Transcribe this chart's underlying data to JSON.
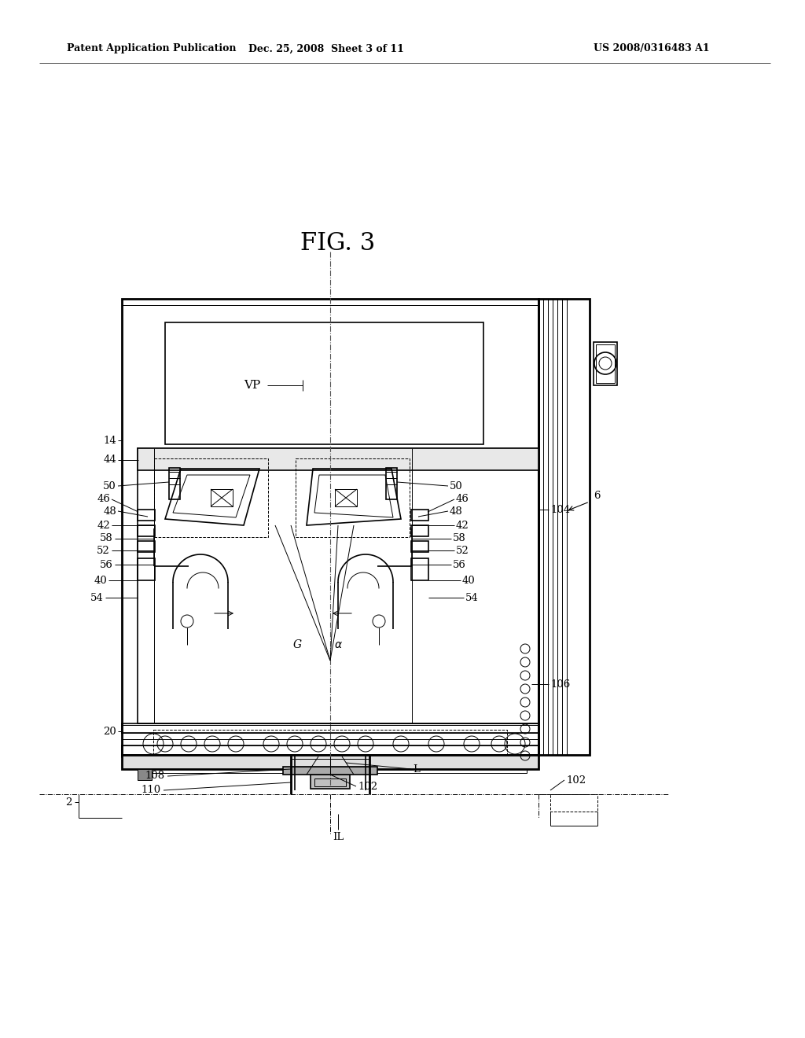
{
  "title": "FIG. 3",
  "header_left": "Patent Application Publication",
  "header_center": "Dec. 25, 2008  Sheet 3 of 11",
  "header_right": "US 2008/0316483 A1",
  "bg_color": "#ffffff"
}
